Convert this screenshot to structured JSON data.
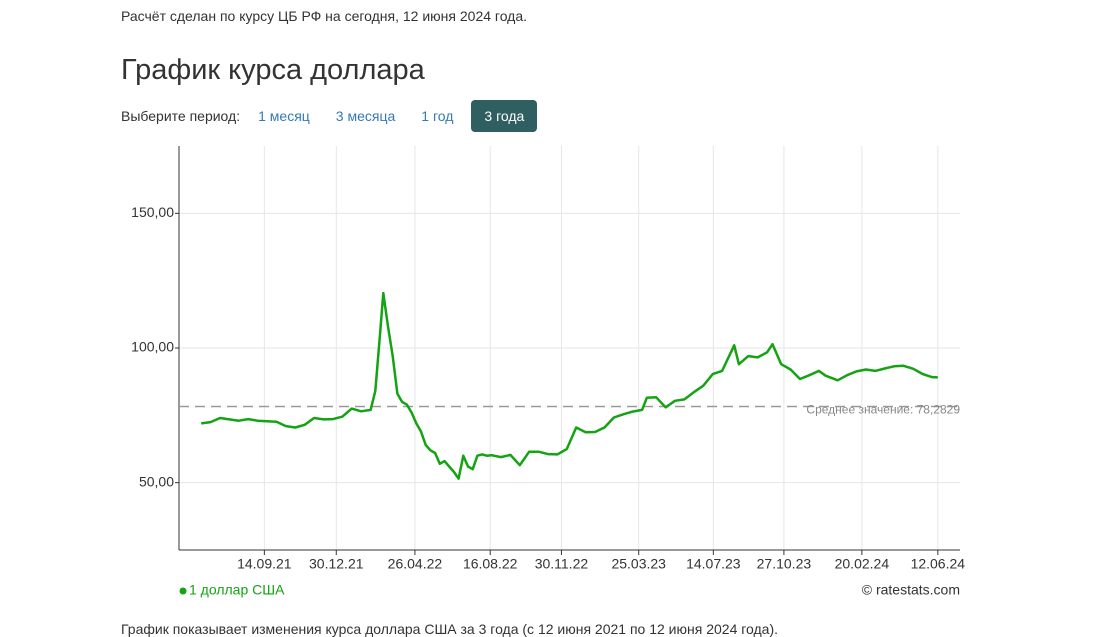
{
  "header": {
    "note": "Расчёт сделан по курсу ЦБ РФ на сегодня, 12 июня 2024 года."
  },
  "title": "График курса доллара",
  "period": {
    "label": "Выберите период:",
    "options": [
      "1 месяц",
      "3 месяца",
      "1 год",
      "3 года"
    ],
    "active": 3
  },
  "chart_data": {
    "type": "line",
    "x": [
      "12.06.21",
      "26.06.21",
      "10.07.21",
      "24.07.21",
      "07.08.21",
      "21.08.21",
      "04.09.21",
      "18.09.21",
      "02.10.21",
      "16.10.21",
      "30.10.21",
      "13.11.21",
      "27.11.21",
      "11.12.21",
      "25.12.21",
      "08.01.22",
      "22.01.22",
      "05.02.22",
      "19.02.22",
      "26.02.22",
      "05.03.22",
      "10.03.22",
      "17.03.22",
      "24.03.22",
      "31.03.22",
      "07.04.22",
      "14.04.22",
      "21.04.22",
      "28.04.22",
      "05.05.22",
      "12.05.22",
      "19.05.22",
      "26.05.22",
      "02.06.22",
      "09.06.22",
      "16.06.22",
      "23.06.22",
      "30.06.22",
      "07.07.22",
      "14.07.22",
      "21.07.22",
      "28.07.22",
      "04.08.22",
      "11.08.22",
      "18.08.22",
      "01.09.22",
      "15.09.22",
      "29.09.22",
      "13.10.22",
      "27.10.22",
      "10.11.22",
      "24.11.22",
      "08.12.22",
      "22.12.22",
      "05.01.23",
      "19.01.23",
      "02.02.23",
      "16.02.23",
      "02.03.23",
      "16.03.23",
      "30.03.23",
      "06.04.23",
      "20.04.23",
      "04.05.23",
      "18.05.23",
      "01.06.23",
      "15.06.23",
      "29.06.23",
      "13.07.23",
      "27.07.23",
      "14.08.23",
      "21.08.23",
      "04.09.23",
      "18.09.23",
      "02.10.23",
      "10.10.23",
      "23.10.23",
      "06.11.23",
      "20.11.23",
      "04.12.23",
      "18.12.23",
      "28.12.23",
      "15.01.24",
      "29.01.24",
      "12.02.24",
      "26.02.24",
      "11.03.24",
      "25.03.24",
      "08.04.24",
      "22.04.24",
      "06.05.24",
      "20.05.24",
      "03.06.24",
      "12.06.24"
    ],
    "series": [
      {
        "name": "1 доллар США",
        "color": "#13a313",
        "values": [
          72,
          72.5,
          74,
          73.5,
          73,
          73.6,
          73,
          72.8,
          72.6,
          71,
          70.5,
          71.5,
          74,
          73.5,
          73.6,
          74.5,
          77.5,
          76.5,
          77,
          84,
          105,
          120.4,
          108,
          97,
          83,
          80,
          79,
          76,
          72,
          69,
          64,
          62,
          61,
          57,
          58,
          56,
          54,
          51.5,
          60,
          56,
          55,
          60,
          60.5,
          60,
          60.2,
          59.5,
          60.3,
          56.5,
          61.5,
          61.5,
          60.6,
          60.5,
          62.5,
          70.5,
          68.7,
          68.8,
          70.5,
          74.2,
          75.4,
          76.4,
          77,
          81.5,
          81.7,
          78,
          80.4,
          80.9,
          83.6,
          86,
          90.3,
          91.5,
          101,
          94,
          97,
          96.5,
          98.4,
          101.4,
          94,
          92,
          88.5,
          89.9,
          91.5,
          89.7,
          88,
          89.9,
          91.3,
          92,
          91.5,
          92.4,
          93.2,
          93.4,
          92.3,
          90.4,
          89.2,
          89.1
        ]
      }
    ],
    "xlim": [
      "10.05.21",
      "15.07.24"
    ],
    "xticks": [
      "14.09.21",
      "30.12.21",
      "26.04.22",
      "16.08.22",
      "30.11.22",
      "25.03.23",
      "14.07.23",
      "27.10.23",
      "20.02.24",
      "12.06.24"
    ],
    "ylim": [
      25,
      175
    ],
    "yticks": [
      {
        "value": 50,
        "label": "50,00"
      },
      {
        "value": 100,
        "label": "100,00"
      },
      {
        "value": 150,
        "label": "150,00"
      }
    ],
    "grid": true,
    "average": {
      "value": 78.2829,
      "label": "Среднее значение: 78,2829"
    },
    "credit": "© ratestats.com"
  },
  "footer": {
    "note": "График показывает изменения курса доллара США за 3 года (с 12 июня 2021 по 12 июня 2024 года)."
  }
}
